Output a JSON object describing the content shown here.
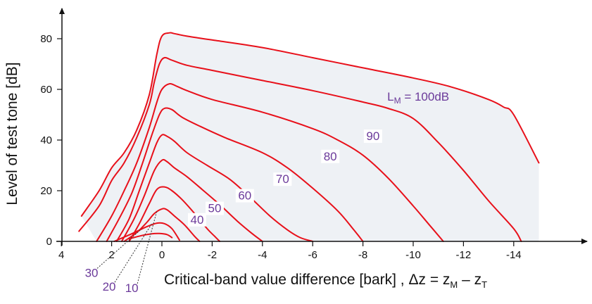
{
  "chart_data": {
    "type": "line",
    "title": "",
    "xlabel": "Critical-band value difference [bark] , Δz = z",
    "xlabel_sub1": "M",
    "xlabel_mid": " – z",
    "xlabel_sub2": "T",
    "ylabel": "Level of test tone [dB]",
    "xlim": [
      4,
      -15.5
    ],
    "ylim": [
      0,
      87
    ],
    "x_ticks": [
      4,
      2,
      0,
      -2,
      -4,
      -6,
      -8,
      -10,
      -12,
      -14
    ],
    "x_tick_labels": [
      "4",
      "2",
      "0",
      "-2",
      "-4",
      "-6",
      "-8",
      "-10",
      "-12",
      "-14"
    ],
    "y_ticks": [
      0,
      20,
      40,
      60,
      80
    ],
    "y_tick_labels": [
      "0",
      "20",
      "40",
      "60",
      "80"
    ],
    "grid": false,
    "colors": {
      "curves": "#e8101a",
      "labels": "#6b3a9a",
      "fill": "#eef1f5",
      "axis": "#111111"
    },
    "label_prefix": "L",
    "label_prefix_sub": "M",
    "label_prefix_suffix": " = ",
    "series": [
      {
        "name": "100dB",
        "label": "100dB",
        "x": [
          3.2,
          2.5,
          2.0,
          1.5,
          1.0,
          0.5,
          0.2,
          0.0,
          -0.3,
          -0.5,
          -1.0,
          -2.0,
          -4.0,
          -6.0,
          -8.0,
          -10.0,
          -11.5,
          -13.0,
          -13.6,
          -14.0,
          -15.0
        ],
        "y": [
          10,
          20,
          29,
          35,
          44,
          58,
          74,
          81,
          82.3,
          82.0,
          81.0,
          79.5,
          76.5,
          72.5,
          68.5,
          64.5,
          61.0,
          56.0,
          53.0,
          50.0,
          31.0
        ]
      },
      {
        "name": "90",
        "label": "90",
        "x": [
          3.3,
          2.5,
          2.0,
          1.5,
          1.0,
          0.5,
          0.3,
          0.1,
          -0.1,
          -0.4,
          -1.0,
          -2.0,
          -4.0,
          -6.0,
          -8.0,
          -9.0,
          -10.0,
          -11.0,
          -12.0,
          -13.0,
          -14.0,
          -14.3
        ],
        "y": [
          4,
          14,
          24,
          31,
          41,
          54,
          63,
          70,
          72.5,
          71.5,
          69.5,
          67.5,
          63.5,
          59.5,
          55.0,
          52.5,
          48.5,
          39.0,
          28.0,
          16.0,
          5.0,
          0
        ]
      },
      {
        "name": "80",
        "label": "80",
        "x": [
          2.6,
          2.0,
          1.5,
          1.0,
          0.5,
          0.2,
          0.0,
          -0.3,
          -0.6,
          -1.0,
          -2.0,
          -4.0,
          -6.0,
          -7.0,
          -8.0,
          -9.0,
          -10.0,
          -10.6,
          -11.2
        ],
        "y": [
          0,
          10,
          20,
          31,
          45,
          55,
          60,
          62.2,
          61.2,
          59.5,
          56.0,
          51.0,
          44.5,
          40.0,
          34.0,
          25.0,
          14.0,
          7.0,
          0
        ]
      },
      {
        "name": "70",
        "label": "70",
        "x": [
          2.2,
          1.7,
          1.2,
          0.8,
          0.4,
          0.1,
          -0.1,
          -0.4,
          -0.8,
          -1.5,
          -2.5,
          -4.0,
          -5.0,
          -6.0,
          -7.0,
          -7.6,
          -8.0
        ],
        "y": [
          0,
          9,
          19,
          30,
          42,
          50,
          52.5,
          52.0,
          49.0,
          45.5,
          41.0,
          35.0,
          29.0,
          21.0,
          12.0,
          5.0,
          0
        ]
      },
      {
        "name": "60",
        "label": "60",
        "x": [
          1.8,
          1.3,
          0.9,
          0.5,
          0.2,
          0.0,
          -0.2,
          -0.5,
          -1.0,
          -1.8,
          -2.7,
          -3.5,
          -4.3,
          -5.0,
          -5.5,
          -6.0
        ],
        "y": [
          0,
          9,
          20,
          31,
          39,
          42,
          41.5,
          39.5,
          35.0,
          30.0,
          24.5,
          17.5,
          10.0,
          4.5,
          1.5,
          0
        ]
      },
      {
        "name": "50",
        "label": "50",
        "x": [
          1.6,
          1.1,
          0.7,
          0.3,
          0.0,
          -0.2,
          -0.5,
          -1.0,
          -1.6,
          -2.3,
          -3.0,
          -3.6,
          -4.0
        ],
        "y": [
          0,
          9,
          18,
          28,
          32,
          31.5,
          29,
          25.5,
          20.5,
          14.5,
          8.0,
          3.0,
          0
        ]
      },
      {
        "name": "40",
        "label": "40",
        "x": [
          1.3,
          0.9,
          0.5,
          0.2,
          -0.1,
          -0.4,
          -0.8,
          -1.3,
          -1.8,
          -2.1,
          -2.3
        ],
        "y": [
          0,
          7,
          15,
          20.5,
          21.5,
          20.0,
          16.5,
          11.0,
          5.0,
          2.0,
          0
        ]
      },
      {
        "name": "30",
        "label": "30",
        "x": [
          1.5,
          1.0,
          0.6,
          0.3,
          0.0,
          -0.2,
          -0.5,
          -0.9,
          -1.3,
          -1.5
        ],
        "y": [
          0,
          3.5,
          7.5,
          11.0,
          12.8,
          12.5,
          10.0,
          6.5,
          2.0,
          0
        ]
      },
      {
        "name": "20",
        "label": "20",
        "x": [
          1.9,
          1.2,
          0.6,
          0.2,
          -0.1,
          -0.4,
          -0.7
        ],
        "y": [
          0,
          3.0,
          5.8,
          7.2,
          7.0,
          5.0,
          0.5
        ]
      },
      {
        "name": "10",
        "label": "10",
        "x": [
          1.3,
          0.8,
          0.4,
          0.1,
          -0.2,
          -0.4
        ],
        "y": [
          1.0,
          2.3,
          3.0,
          3.1,
          2.7,
          1.5
        ]
      }
    ],
    "annotations": [
      {
        "series": "100dB",
        "x": -10.2,
        "y": 55.5,
        "prefixed": true
      },
      {
        "series": "90",
        "x": -8.4,
        "y": 40.0,
        "prefixed": false
      },
      {
        "series": "80",
        "x": -6.7,
        "y": 32.0,
        "prefixed": false
      },
      {
        "series": "70",
        "x": -4.8,
        "y": 23.0,
        "prefixed": false
      },
      {
        "series": "60",
        "x": -3.3,
        "y": 16.5,
        "prefixed": false
      },
      {
        "series": "50",
        "x": -2.1,
        "y": 11.5,
        "prefixed": false
      },
      {
        "series": "40",
        "x": -1.4,
        "y": 7.0,
        "prefixed": false
      },
      {
        "series": "30",
        "x": 2.8,
        "y": -14.0,
        "prefixed": false,
        "leader_to": [
          0.8,
          5.0
        ]
      },
      {
        "series": "20",
        "x": 2.1,
        "y": -19.5,
        "prefixed": false,
        "leader_to": [
          0.4,
          7.0
        ]
      },
      {
        "series": "10",
        "x": 1.2,
        "y": -20.0,
        "prefixed": false,
        "leader_to": [
          0.2,
          12.0
        ]
      }
    ]
  }
}
